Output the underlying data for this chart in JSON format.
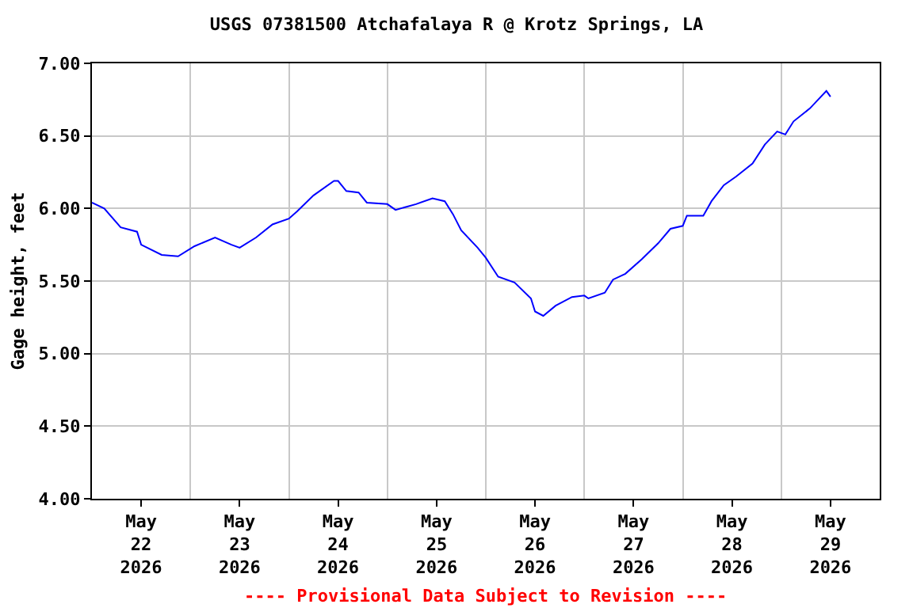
{
  "chart_data": {
    "type": "line",
    "title": "USGS 07381500 Atchafalaya R @ Krotz Springs, LA",
    "ylabel": "Gage height, feet",
    "annotations": [
      "---- Provisional Data Subject to Revision ----"
    ],
    "x": [
      "2026-05-22T00:00",
      "2026-05-22T03:00",
      "2026-05-22T07:00",
      "2026-05-22T11:00",
      "2026-05-22T12:00",
      "2026-05-22T17:00",
      "2026-05-22T21:00",
      "2026-05-23T01:00",
      "2026-05-23T06:00",
      "2026-05-23T10:00",
      "2026-05-23T12:00",
      "2026-05-23T16:00",
      "2026-05-23T20:00",
      "2026-05-24T00:00",
      "2026-05-24T02:00",
      "2026-05-24T06:00",
      "2026-05-24T11:00",
      "2026-05-24T12:00",
      "2026-05-24T14:00",
      "2026-05-24T17:00",
      "2026-05-24T19:00",
      "2026-05-25T00:00",
      "2026-05-25T02:00",
      "2026-05-25T07:00",
      "2026-05-25T11:00",
      "2026-05-25T14:00",
      "2026-05-25T16:00",
      "2026-05-25T18:00",
      "2026-05-25T22:00",
      "2026-05-26T00:00",
      "2026-05-26T03:00",
      "2026-05-26T07:00",
      "2026-05-26T11:00",
      "2026-05-26T12:00",
      "2026-05-26T14:00",
      "2026-05-26T17:00",
      "2026-05-26T21:00",
      "2026-05-27T00:00",
      "2026-05-27T01:00",
      "2026-05-27T05:00",
      "2026-05-27T07:00",
      "2026-05-27T10:00",
      "2026-05-27T14:00",
      "2026-05-27T18:00",
      "2026-05-27T21:00",
      "2026-05-28T00:00",
      "2026-05-28T01:00",
      "2026-05-28T05:00",
      "2026-05-28T07:00",
      "2026-05-28T10:00",
      "2026-05-28T13:00",
      "2026-05-28T17:00",
      "2026-05-28T20:00",
      "2026-05-28T23:00",
      "2026-05-29T01:00",
      "2026-05-29T03:00",
      "2026-05-29T07:00",
      "2026-05-29T11:00",
      "2026-05-29T12:00"
    ],
    "series": [
      {
        "color": "#0000ff",
        "values": [
          6.04,
          6.0,
          5.87,
          5.84,
          5.75,
          5.68,
          5.67,
          5.74,
          5.8,
          5.75,
          5.73,
          5.8,
          5.89,
          5.93,
          5.98,
          6.09,
          6.19,
          6.19,
          6.12,
          6.11,
          6.04,
          6.03,
          5.99,
          6.03,
          6.07,
          6.05,
          5.96,
          5.85,
          5.73,
          5.66,
          5.53,
          5.49,
          5.38,
          5.29,
          5.26,
          5.33,
          5.39,
          5.4,
          5.38,
          5.42,
          5.51,
          5.55,
          5.65,
          5.76,
          5.86,
          5.88,
          5.95,
          5.95,
          6.05,
          6.16,
          6.22,
          6.31,
          6.44,
          6.53,
          6.51,
          6.6,
          6.69,
          6.81,
          6.77
        ]
      }
    ],
    "xlim": [
      "2026-05-22T00:00",
      "2026-05-30T00:00"
    ],
    "xticks": [
      {
        "value": "2026-05-22T12:00",
        "label": "May\n22\n2026"
      },
      {
        "value": "2026-05-23T12:00",
        "label": "May\n23\n2026"
      },
      {
        "value": "2026-05-24T12:00",
        "label": "May\n24\n2026"
      },
      {
        "value": "2026-05-25T12:00",
        "label": "May\n25\n2026"
      },
      {
        "value": "2026-05-26T12:00",
        "label": "May\n26\n2026"
      },
      {
        "value": "2026-05-27T12:00",
        "label": "May\n27\n2026"
      },
      {
        "value": "2026-05-28T12:00",
        "label": "May\n28\n2026"
      },
      {
        "value": "2026-05-29T12:00",
        "label": "May\n29\n2026"
      },
      {
        "value": "2026-05-23T00:00",
        "label": null
      },
      {
        "value": "2026-05-24T00:00",
        "label": null
      },
      {
        "value": "2026-05-25T00:00",
        "label": null
      },
      {
        "value": "2026-05-26T00:00",
        "label": null
      },
      {
        "value": "2026-05-27T00:00",
        "label": null
      },
      {
        "value": "2026-05-28T00:00",
        "label": null
      },
      {
        "value": "2026-05-29T00:00",
        "label": null
      }
    ],
    "ylim": [
      4,
      7
    ],
    "yticks": [
      {
        "value": 4,
        "label": "4.00"
      },
      {
        "value": 4.5,
        "label": "4.50"
      },
      {
        "value": 5,
        "label": "5.00"
      },
      {
        "value": 5.5,
        "label": "5.50"
      },
      {
        "value": 6,
        "label": "6.00"
      },
      {
        "value": 6.5,
        "label": "6.50"
      },
      {
        "value": 7,
        "label": "7.00"
      }
    ],
    "grid": true,
    "marker": "none",
    "line_style": "solid"
  }
}
